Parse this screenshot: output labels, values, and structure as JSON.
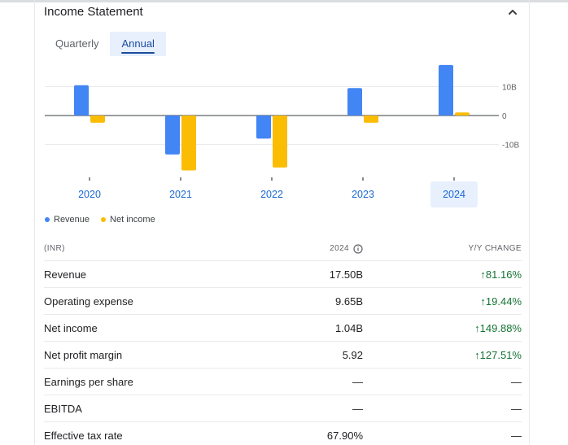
{
  "header": {
    "title": "Income Statement",
    "collapse_icon": "chevron-up-icon"
  },
  "tabs": [
    {
      "label": "Quarterly",
      "active": false
    },
    {
      "label": "Annual",
      "active": true
    }
  ],
  "chart_data": {
    "type": "bar",
    "categories": [
      "2020",
      "2021",
      "2022",
      "2023",
      "2024"
    ],
    "selected_category": "2024",
    "series": [
      {
        "name": "Revenue",
        "color": "#4285f4",
        "values": [
          10.5,
          -13.5,
          -8.0,
          9.5,
          17.5
        ]
      },
      {
        "name": "Net income",
        "color": "#fbbc04",
        "values": [
          -2.5,
          -19.0,
          -18.0,
          -2.5,
          1.04
        ]
      }
    ],
    "y_ticks": [
      {
        "value": 10,
        "label": "10B"
      },
      {
        "value": 0,
        "label": "0"
      },
      {
        "value": -10,
        "label": "-10B"
      }
    ],
    "ylim": [
      -20,
      18
    ],
    "grid": true,
    "legend_position": "bottom-left"
  },
  "legend": [
    {
      "label": "Revenue",
      "color": "#4285f4"
    },
    {
      "label": "Net income",
      "color": "#fbbc04"
    }
  ],
  "table": {
    "headers": {
      "metric": "(INR)",
      "year": "2024",
      "change": "Y/Y CHANGE"
    },
    "rows": [
      {
        "label": "Revenue",
        "value": "17.50B",
        "change": "↑81.16%"
      },
      {
        "label": "Operating expense",
        "value": "9.65B",
        "change": "↑19.44%"
      },
      {
        "label": "Net income",
        "value": "1.04B",
        "change": "↑149.88%"
      },
      {
        "label": "Net profit margin",
        "value": "5.92",
        "change": "↑127.51%"
      },
      {
        "label": "Earnings per share",
        "value": "—",
        "change": "—"
      },
      {
        "label": "EBITDA",
        "value": "—",
        "change": "—"
      },
      {
        "label": "Effective tax rate",
        "value": "67.90%",
        "change": "—"
      }
    ]
  }
}
